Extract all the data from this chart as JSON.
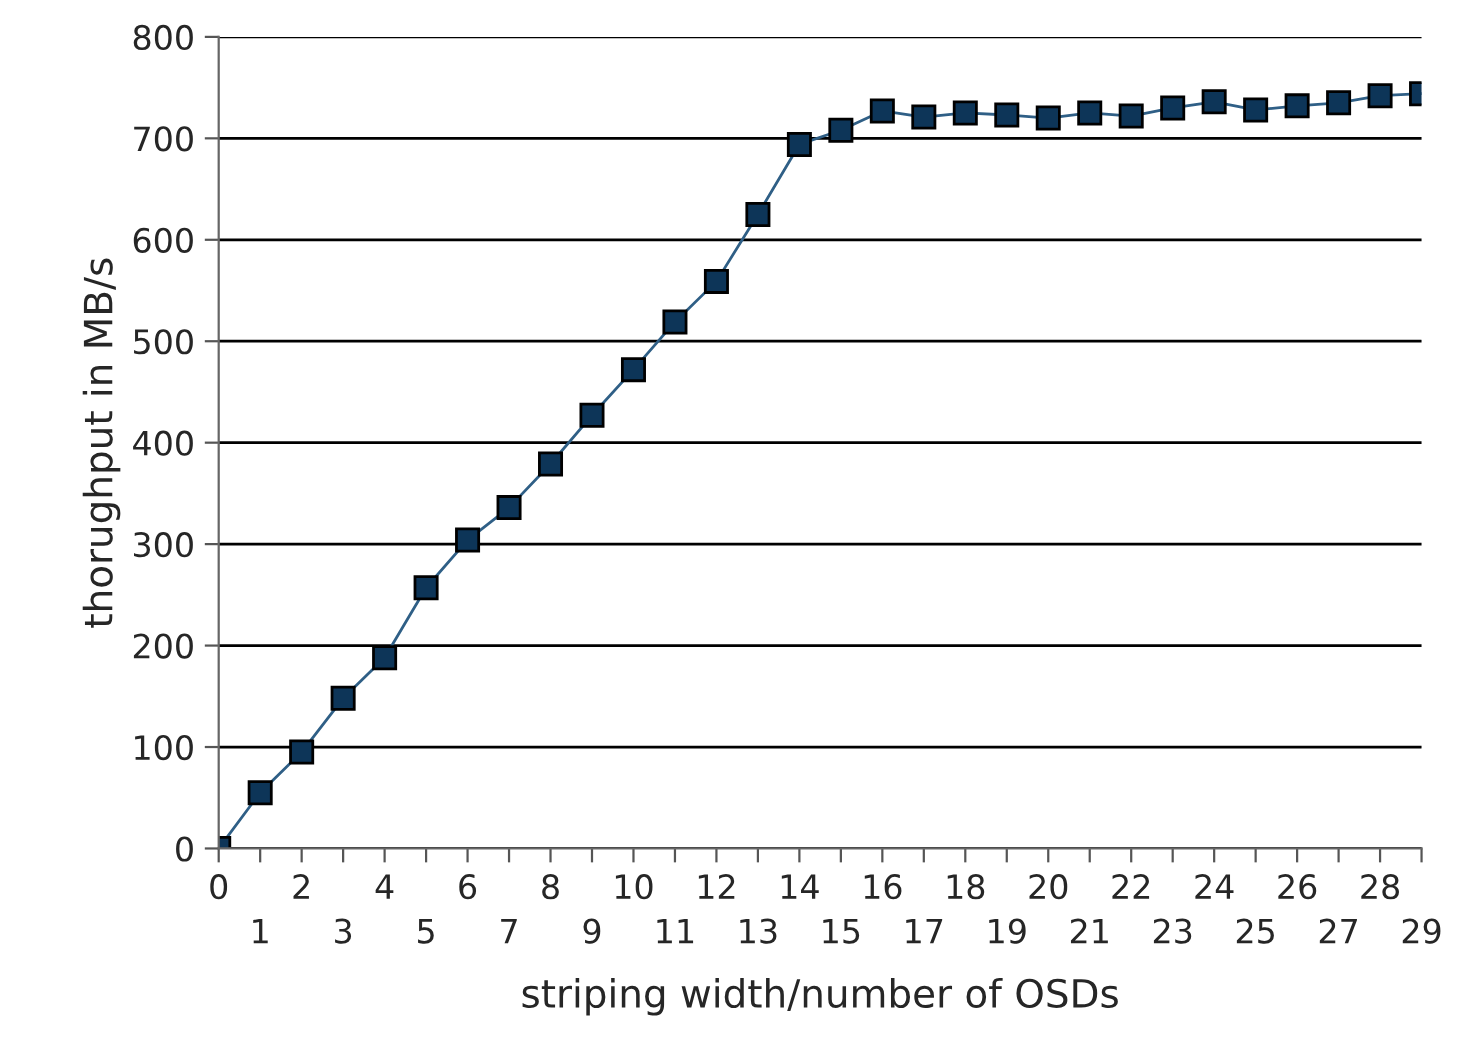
{
  "chart_data": {
    "type": "line",
    "xlabel": "striping width/number of OSDs",
    "ylabel": "thorughput in MB/s",
    "categories": [
      "0",
      "1",
      "2",
      "3",
      "4",
      "5",
      "6",
      "7",
      "8",
      "9",
      "10",
      "11",
      "12",
      "13",
      "14",
      "15",
      "16",
      "17",
      "18",
      "19",
      "20",
      "21",
      "22",
      "23",
      "24",
      "25",
      "26",
      "27",
      "28",
      "29"
    ],
    "series": [
      {
        "color": "#0d3558",
        "values": [
          0,
          55,
          95,
          148,
          188,
          257,
          304,
          336,
          379,
          427,
          472,
          519,
          559,
          625,
          694,
          708,
          727,
          721,
          725,
          723,
          720,
          725,
          722,
          730,
          736,
          728,
          732,
          735,
          742,
          744
        ]
      }
    ],
    "ylim": [
      0,
      800
    ],
    "yticks": [
      0,
      100,
      200,
      300,
      400,
      500,
      600,
      700,
      800
    ],
    "grid": "y",
    "marker": "square",
    "line_style": "solid",
    "legend": false
  }
}
